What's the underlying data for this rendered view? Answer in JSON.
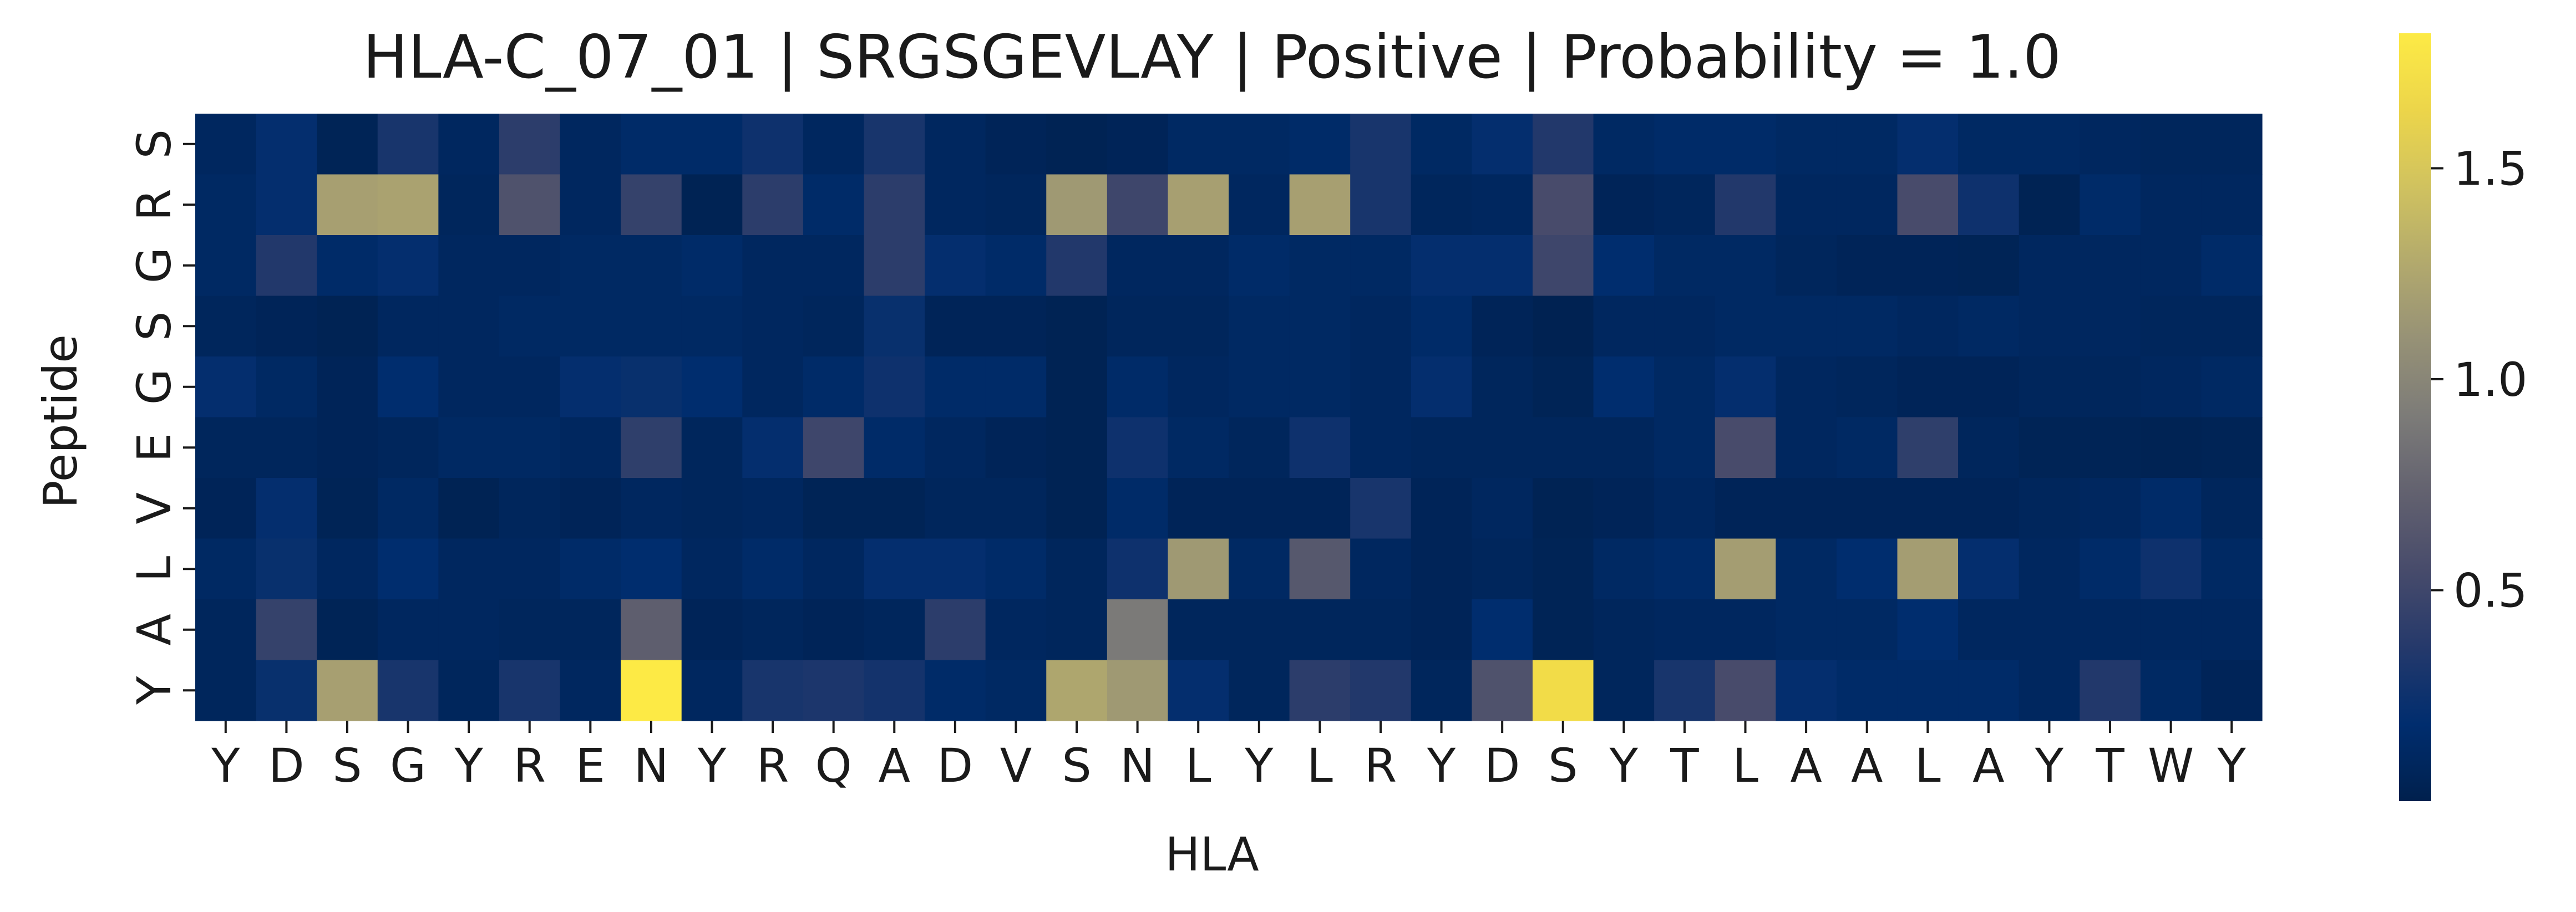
{
  "chart_data": {
    "type": "heatmap",
    "title": "HLA-C_07_01 | SRGSGEVLAY | Positive | Probability = 1.0",
    "xlabel": "HLA",
    "ylabel": "Peptide",
    "x": [
      "Y",
      "D",
      "S",
      "G",
      "Y",
      "R",
      "E",
      "N",
      "Y",
      "R",
      "Q",
      "A",
      "D",
      "V",
      "S",
      "N",
      "L",
      "Y",
      "L",
      "R",
      "Y",
      "D",
      "S",
      "Y",
      "T",
      "L",
      "A",
      "A",
      "L",
      "A",
      "Y",
      "T",
      "W",
      "Y"
    ],
    "y": [
      "S",
      "R",
      "G",
      "S",
      "G",
      "E",
      "V",
      "L",
      "A",
      "Y"
    ],
    "colormap": "cividis",
    "colorbar": {
      "min": 0.0,
      "max": 1.82,
      "ticks": [
        0.5,
        1.0,
        1.5
      ],
      "tick_labels": [
        "0.5",
        "1.0",
        "1.5"
      ]
    },
    "values": [
      [
        0.1,
        0.2,
        0.05,
        0.3,
        0.1,
        0.4,
        0.1,
        0.15,
        0.15,
        0.25,
        0.1,
        0.3,
        0.1,
        0.06,
        0.04,
        0.06,
        0.12,
        0.12,
        0.15,
        0.3,
        0.12,
        0.2,
        0.35,
        0.12,
        0.15,
        0.15,
        0.12,
        0.12,
        0.2,
        0.12,
        0.12,
        0.1,
        0.08,
        0.08
      ],
      [
        0.12,
        0.2,
        1.2,
        1.22,
        0.08,
        0.6,
        0.1,
        0.45,
        0.04,
        0.4,
        0.15,
        0.4,
        0.1,
        0.08,
        1.15,
        0.5,
        1.2,
        0.1,
        1.2,
        0.3,
        0.08,
        0.1,
        0.55,
        0.06,
        0.08,
        0.35,
        0.1,
        0.1,
        0.55,
        0.25,
        0.04,
        0.15,
        0.1,
        0.1
      ],
      [
        0.12,
        0.35,
        0.15,
        0.2,
        0.1,
        0.1,
        0.12,
        0.12,
        0.15,
        0.1,
        0.1,
        0.4,
        0.2,
        0.15,
        0.35,
        0.1,
        0.1,
        0.15,
        0.12,
        0.12,
        0.2,
        0.2,
        0.5,
        0.18,
        0.12,
        0.12,
        0.08,
        0.06,
        0.06,
        0.05,
        0.1,
        0.1,
        0.1,
        0.15
      ],
      [
        0.08,
        0.06,
        0.04,
        0.1,
        0.1,
        0.12,
        0.12,
        0.12,
        0.12,
        0.1,
        0.08,
        0.22,
        0.06,
        0.06,
        0.04,
        0.08,
        0.08,
        0.12,
        0.12,
        0.1,
        0.15,
        0.06,
        0.03,
        0.1,
        0.1,
        0.12,
        0.12,
        0.12,
        0.1,
        0.12,
        0.1,
        0.1,
        0.08,
        0.08
      ],
      [
        0.2,
        0.12,
        0.06,
        0.18,
        0.1,
        0.1,
        0.2,
        0.22,
        0.18,
        0.1,
        0.15,
        0.25,
        0.15,
        0.15,
        0.04,
        0.15,
        0.1,
        0.12,
        0.12,
        0.1,
        0.2,
        0.08,
        0.05,
        0.18,
        0.12,
        0.2,
        0.1,
        0.08,
        0.06,
        0.06,
        0.08,
        0.08,
        0.1,
        0.12
      ],
      [
        0.08,
        0.08,
        0.06,
        0.08,
        0.12,
        0.12,
        0.1,
        0.42,
        0.08,
        0.2,
        0.5,
        0.15,
        0.1,
        0.06,
        0.04,
        0.25,
        0.12,
        0.08,
        0.25,
        0.1,
        0.08,
        0.08,
        0.08,
        0.08,
        0.12,
        0.55,
        0.1,
        0.12,
        0.42,
        0.08,
        0.05,
        0.05,
        0.04,
        0.05
      ],
      [
        0.06,
        0.2,
        0.05,
        0.12,
        0.04,
        0.08,
        0.06,
        0.1,
        0.08,
        0.1,
        0.05,
        0.05,
        0.08,
        0.08,
        0.04,
        0.15,
        0.06,
        0.06,
        0.06,
        0.3,
        0.06,
        0.1,
        0.04,
        0.06,
        0.1,
        0.06,
        0.06,
        0.06,
        0.06,
        0.06,
        0.08,
        0.1,
        0.15,
        0.08
      ],
      [
        0.12,
        0.22,
        0.1,
        0.18,
        0.1,
        0.1,
        0.15,
        0.18,
        0.1,
        0.15,
        0.1,
        0.2,
        0.2,
        0.15,
        0.08,
        0.25,
        1.15,
        0.12,
        0.65,
        0.1,
        0.06,
        0.08,
        0.05,
        0.12,
        0.15,
        1.18,
        0.12,
        0.18,
        1.18,
        0.2,
        0.1,
        0.15,
        0.25,
        0.12
      ],
      [
        0.08,
        0.45,
        0.05,
        0.1,
        0.1,
        0.08,
        0.08,
        0.7,
        0.06,
        0.08,
        0.06,
        0.08,
        0.4,
        0.1,
        0.08,
        0.9,
        0.08,
        0.08,
        0.08,
        0.08,
        0.06,
        0.18,
        0.05,
        0.08,
        0.1,
        0.1,
        0.12,
        0.12,
        0.18,
        0.1,
        0.1,
        0.1,
        0.1,
        0.1
      ],
      [
        0.08,
        0.22,
        1.2,
        0.3,
        0.08,
        0.3,
        0.1,
        1.82,
        0.1,
        0.3,
        0.32,
        0.28,
        0.15,
        0.12,
        1.25,
        1.15,
        0.2,
        0.08,
        0.4,
        0.35,
        0.08,
        0.6,
        1.7,
        0.08,
        0.3,
        0.55,
        0.2,
        0.15,
        0.15,
        0.15,
        0.1,
        0.35,
        0.12,
        0.06
      ]
    ]
  }
}
